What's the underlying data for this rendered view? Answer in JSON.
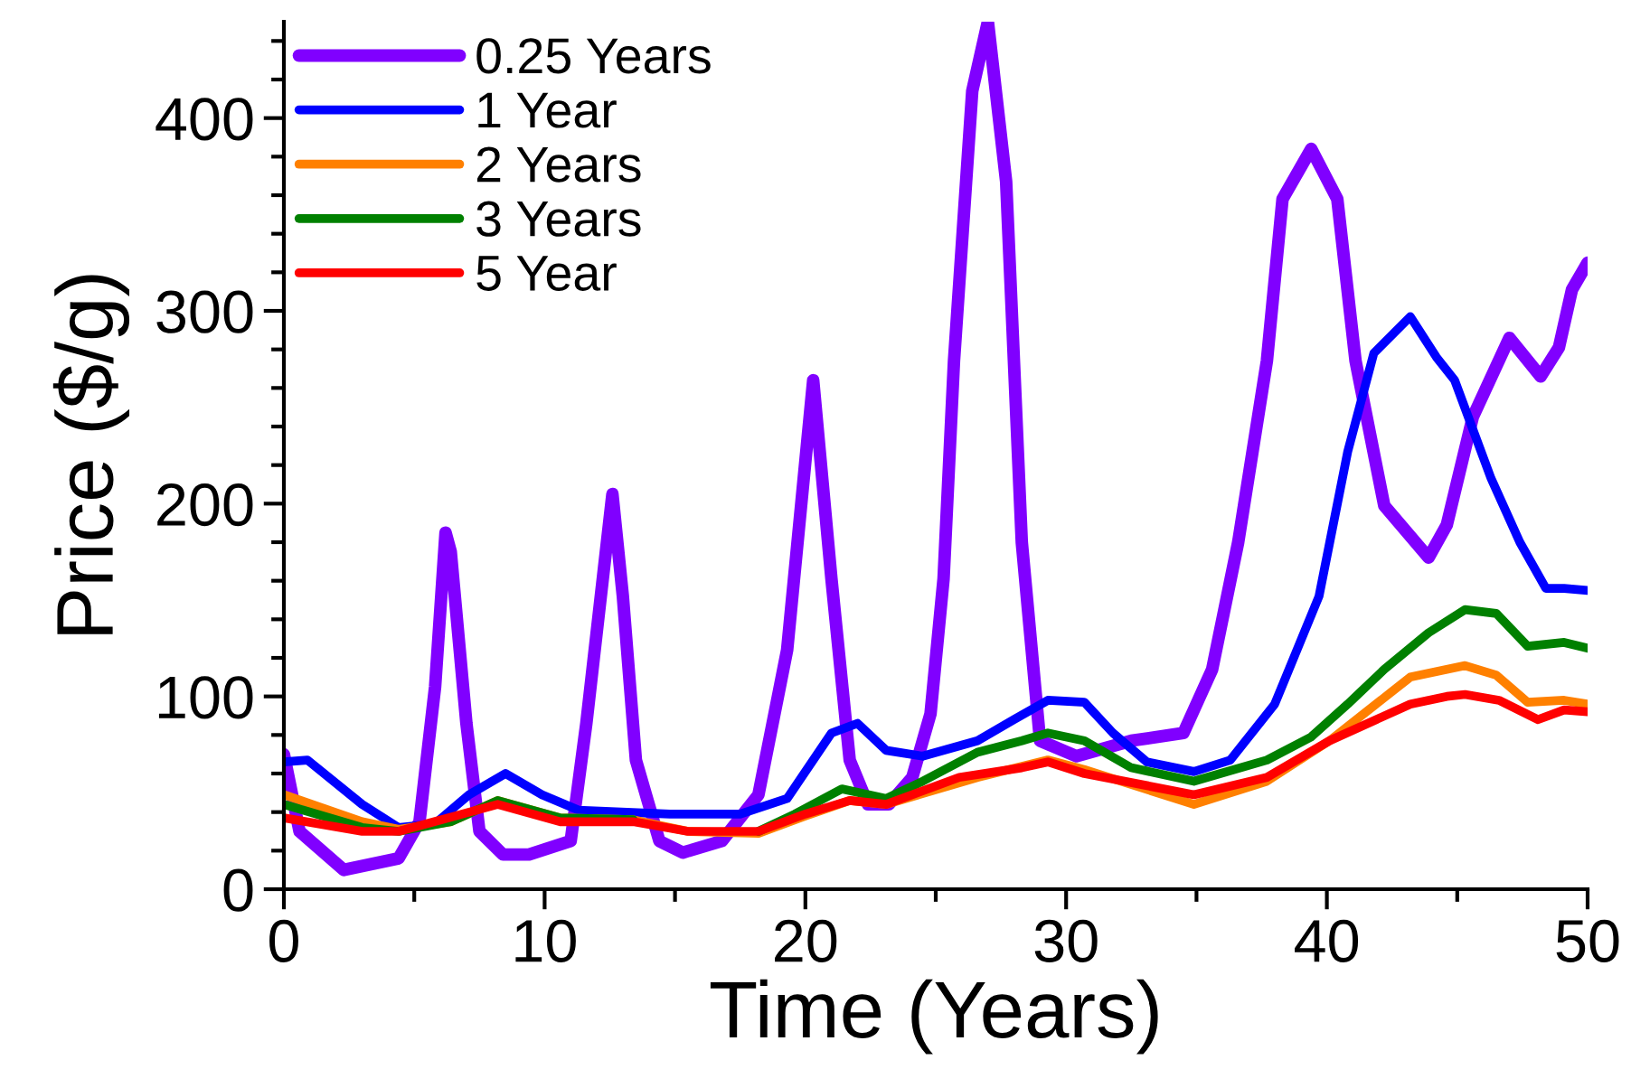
{
  "chart_data": {
    "type": "line",
    "xlabel": "Time (Years)",
    "ylabel": "Price ($/g)",
    "legend": "top left",
    "xlim": [
      0,
      50
    ],
    "ylim": [
      0,
      450
    ],
    "xticks": [
      0,
      {
        "value": 5,
        "label": null
      },
      10,
      {
        "value": 15,
        "label": null
      },
      20,
      {
        "value": 25,
        "label": null
      },
      30,
      {
        "value": 35,
        "label": null
      },
      40,
      {
        "value": 45,
        "label": null
      },
      50
    ],
    "yticks": [
      0,
      {
        "value": 20,
        "label": null
      },
      {
        "value": 40,
        "label": null
      },
      {
        "value": 60,
        "label": null
      },
      {
        "value": 80,
        "label": null
      },
      100,
      {
        "value": 120,
        "label": null
      },
      {
        "value": 140,
        "label": null
      },
      {
        "value": 160,
        "label": null
      },
      {
        "value": 180,
        "label": null
      },
      200,
      {
        "value": 220,
        "label": null
      },
      {
        "value": 240,
        "label": null
      },
      {
        "value": 260,
        "label": null
      },
      {
        "value": 280,
        "label": null
      },
      300,
      {
        "value": 320,
        "label": null
      },
      {
        "value": 340,
        "label": null
      },
      {
        "value": 360,
        "label": null
      },
      {
        "value": 380,
        "label": null
      },
      400,
      {
        "value": 420,
        "label": null
      },
      {
        "value": 440,
        "label": null
      }
    ],
    "series": [
      {
        "name": "0.25 Years",
        "color": "#8000ff",
        "x": [
          0,
          0.6,
          2.3,
          4.4,
          5.2,
          5.8,
          6.2,
          6.4,
          7,
          7.5,
          8.4,
          9.4,
          11,
          11.6,
          12.6,
          13,
          13.5,
          14.4,
          15.3,
          16.8,
          18.2,
          19.3,
          20.3,
          21,
          21.7,
          22.4,
          23.2,
          24.1,
          24.8,
          25.3,
          25.7,
          26.4,
          27,
          27.7,
          28.3,
          29,
          30.4,
          32.5,
          34.5,
          35.6,
          36.6,
          37.7,
          38.3,
          39.4,
          40.4,
          41.1,
          42.2,
          43.9,
          44.6,
          45.6,
          47,
          48.2,
          48.9,
          49.4,
          50
        ],
        "values": [
          70,
          30,
          10,
          16,
          35,
          105,
          185,
          175,
          86,
          30,
          18,
          18,
          25,
          86,
          205,
          152,
          67,
          25,
          19,
          25,
          49,
          124,
          264,
          161,
          67,
          44,
          44,
          58,
          91,
          161,
          274,
          414,
          450,
          367,
          180,
          77,
          69,
          77,
          81,
          114,
          180,
          274,
          358,
          384,
          358,
          274,
          199,
          172,
          189,
          245,
          286,
          266,
          281,
          311,
          325
        ]
      },
      {
        "name": "1 Year",
        "color": "#0000ff",
        "x": [
          0,
          0.9,
          3,
          4.4,
          5.8,
          7.1,
          8.5,
          9.9,
          11.3,
          14.8,
          17.5,
          19.3,
          21,
          22,
          23.1,
          24.5,
          26.6,
          28,
          29.3,
          30.7,
          31.8,
          33.1,
          34.9,
          36.3,
          38,
          39.7,
          40.8,
          41.8,
          43.2,
          44.2,
          44.9,
          46.3,
          47.4,
          48.4,
          49.1,
          50
        ],
        "values": [
          66,
          67,
          44,
          32,
          34,
          49,
          60,
          49,
          41,
          39,
          39,
          47,
          81,
          86,
          72,
          69,
          77,
          88,
          98,
          97,
          81,
          66,
          61,
          67,
          96,
          152,
          227,
          278,
          297,
          276,
          264,
          213,
          180,
          156,
          156,
          155
        ]
      },
      {
        "name": "2 Years",
        "color": "#ff8000",
        "x": [
          0,
          3,
          4.4,
          6.4,
          8.2,
          10.6,
          13.4,
          15.5,
          18.2,
          20,
          21.7,
          23.1,
          26.6,
          29.3,
          30.7,
          34.9,
          37.7,
          40.1,
          43.2,
          45.3,
          46.5,
          47.7,
          49.1,
          50
        ],
        "values": [
          49,
          35,
          31,
          35,
          46,
          37,
          36,
          30,
          29,
          38,
          46,
          44,
          58,
          67,
          62,
          44,
          56,
          77,
          110,
          116,
          111,
          97,
          98,
          96
        ]
      },
      {
        "name": "3 Years",
        "color": "#008000",
        "x": [
          0,
          3,
          4.4,
          6.4,
          8.2,
          10.6,
          13.4,
          15.5,
          18.2,
          19.6,
          21.4,
          23.1,
          24.5,
          26.6,
          28.3,
          29.3,
          30.7,
          32.5,
          34.9,
          37.7,
          39.4,
          40.8,
          42.2,
          43.9,
          45.3,
          46.5,
          47.7,
          49.1,
          50
        ],
        "values": [
          44,
          32,
          30,
          35,
          46,
          37,
          36,
          null,
          30,
          39,
          52,
          47,
          56,
          71,
          77,
          81,
          77,
          63,
          56,
          67,
          79,
          96,
          114,
          133,
          145,
          143,
          126,
          128,
          125
        ]
      },
      {
        "name": "5 Year",
        "color": "#ff0000",
        "x": [
          0,
          3,
          4.4,
          8.2,
          10.6,
          13.4,
          15.5,
          18.2,
          20,
          21.7,
          23.1,
          25.9,
          28.3,
          29.3,
          30.7,
          34.9,
          37.7,
          40.1,
          43.2,
          44.6,
          45.3,
          46.6,
          48.1,
          49.1,
          50
        ],
        "values": [
          37,
          30,
          30,
          44,
          35,
          35,
          30,
          30,
          39,
          46,
          44,
          58,
          63,
          66,
          60,
          49,
          58,
          77,
          96,
          100,
          101,
          98,
          88,
          93,
          92
        ]
      }
    ]
  }
}
